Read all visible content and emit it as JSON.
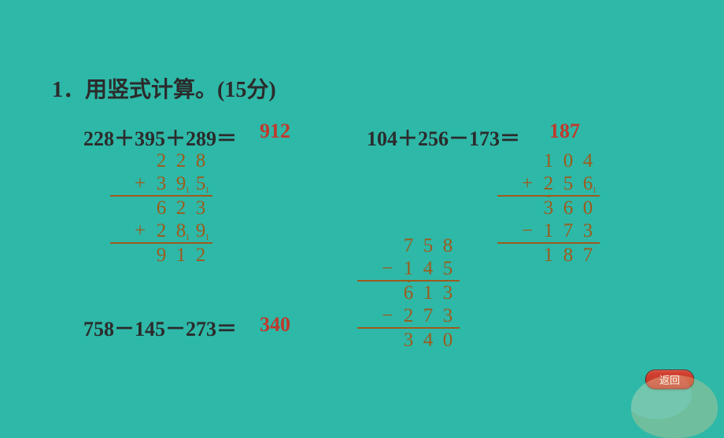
{
  "colors": {
    "background": "#2eb8a8",
    "question_text": "#2b2b2b",
    "answer_text": "#c0392b",
    "work_text": "#9e5a1a",
    "button_bg_top": "#d64535",
    "button_bg_bottom": "#b82e1f",
    "button_text": "#ffffff"
  },
  "title": "1．用竖式计算。(15分)",
  "problems": {
    "p1": {
      "expression": "228＋395＋289＝",
      "answer": "912"
    },
    "p2": {
      "expression": "104＋256－173＝",
      "answer": "187"
    },
    "p3": {
      "expression": "758－145－273＝",
      "answer": "340"
    }
  },
  "work": {
    "w1": {
      "rows": [
        {
          "op": "",
          "d": [
            "2",
            "2",
            "8"
          ],
          "carry": [
            false,
            false,
            false
          ],
          "rule": false
        },
        {
          "op": "+",
          "d": [
            "3",
            "9",
            "5"
          ],
          "carry": [
            false,
            true,
            true
          ],
          "rule": false
        },
        {
          "op": "",
          "d": [
            "6",
            "2",
            "3"
          ],
          "carry": [
            false,
            false,
            false
          ],
          "rule": true
        },
        {
          "op": "+",
          "d": [
            "2",
            "8",
            "9"
          ],
          "carry": [
            false,
            true,
            true
          ],
          "rule": false
        },
        {
          "op": "",
          "d": [
            "9",
            "1",
            "2"
          ],
          "carry": [
            false,
            false,
            false
          ],
          "rule": true
        }
      ]
    },
    "w2": {
      "rows": [
        {
          "op": "",
          "d": [
            "7",
            "5",
            "8"
          ],
          "carry": [
            false,
            false,
            false
          ],
          "rule": false
        },
        {
          "op": "−",
          "d": [
            "1",
            "4",
            "5"
          ],
          "carry": [
            false,
            false,
            false
          ],
          "rule": false
        },
        {
          "op": "",
          "d": [
            "6",
            "1",
            "3"
          ],
          "carry": [
            false,
            false,
            false
          ],
          "rule": true,
          "dot": [
            true,
            false,
            false
          ]
        },
        {
          "op": "−",
          "d": [
            "2",
            "7",
            "3"
          ],
          "carry": [
            false,
            false,
            false
          ],
          "rule": false
        },
        {
          "op": "",
          "d": [
            "3",
            "4",
            "0"
          ],
          "carry": [
            false,
            false,
            false
          ],
          "rule": true
        }
      ]
    },
    "w3": {
      "rows": [
        {
          "op": "",
          "d": [
            "1",
            "0",
            "4"
          ],
          "carry": [
            false,
            false,
            false
          ],
          "rule": false
        },
        {
          "op": "+",
          "d": [
            "2",
            "5",
            "6"
          ],
          "carry": [
            false,
            false,
            true
          ],
          "rule": false
        },
        {
          "op": "",
          "d": [
            "3",
            "6",
            "0"
          ],
          "carry": [
            false,
            false,
            false
          ],
          "rule": true,
          "dot": [
            true,
            false,
            false
          ]
        },
        {
          "op": "−",
          "d": [
            "1",
            "7",
            "3"
          ],
          "carry": [
            false,
            false,
            false
          ],
          "rule": false
        },
        {
          "op": "",
          "d": [
            "1",
            "8",
            "7"
          ],
          "carry": [
            false,
            false,
            false
          ],
          "rule": true
        }
      ]
    }
  },
  "button": {
    "label": "返回"
  }
}
